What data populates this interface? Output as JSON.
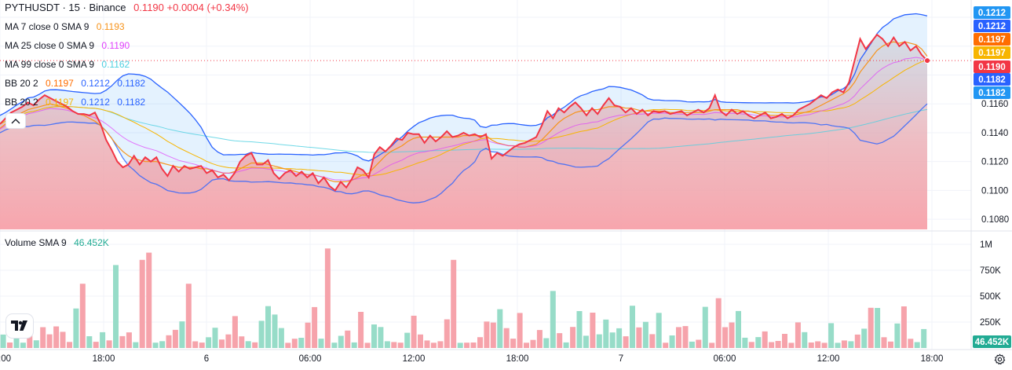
{
  "header": {
    "symbol": "PYTHUSDT",
    "interval": "15",
    "exchange": "Binance",
    "last_price": "0.1190",
    "change": "+0.0004",
    "change_pct": "(+0.34%)"
  },
  "indicators": [
    {
      "label": "MA 7 close 0 SMA 9",
      "value": "0.1193",
      "color": "#f7931a"
    },
    {
      "label": "MA 25 close 0 SMA 9",
      "value": "0.1190",
      "color": "#e040fb"
    },
    {
      "label": "MA 99 close 0 SMA 9",
      "value": "0.1162",
      "color": "#4dd0e1"
    }
  ],
  "bb_rows": [
    {
      "label": "BB 20 2",
      "values": [
        "0.1197",
        "0.1212",
        "0.1182"
      ],
      "colors": [
        "#ff6d00",
        "#2962ff",
        "#2962ff"
      ]
    },
    {
      "label": "BB 20 2",
      "values": [
        "0.1197",
        "0.1212",
        "0.1182"
      ],
      "colors": [
        "#f7b500",
        "#2962ff",
        "#2962ff"
      ]
    }
  ],
  "volume_legend": {
    "label": "Volume SMA 9",
    "value": "46.452K",
    "color": "#22ab94"
  },
  "price_axis": {
    "ticks": [
      "0.1080",
      "0.1100",
      "0.1120",
      "0.1140",
      "0.1160"
    ],
    "badges": [
      {
        "text": "0.1212",
        "color": "#2196f3"
      },
      {
        "text": "0.1212",
        "color": "#2962ff"
      },
      {
        "text": "0.1197",
        "color": "#ff6d00"
      },
      {
        "text": "0.1197",
        "color": "#f7b500"
      },
      {
        "text": "0.1190",
        "color": "#f23645"
      },
      {
        "text": "0.1182",
        "color": "#2962ff"
      },
      {
        "text": "0.1182",
        "color": "#2196f3"
      }
    ]
  },
  "volume_axis": {
    "ticks": [
      "1M",
      "750K",
      "500K",
      "250K"
    ],
    "badge": {
      "text": "46.452K",
      "color": "#22ab94"
    }
  },
  "time_axis": {
    "labels": [
      ":00",
      "18:00",
      "6",
      "06:00",
      "12:00",
      "18:00",
      "7",
      "06:00",
      "12:00",
      "18:00"
    ]
  },
  "icons": {
    "collapse": "chevron-up-icon",
    "logo": "tradingview-logo-icon",
    "settings": "gear-icon"
  },
  "colors": {
    "up": "#22ab94",
    "down": "#f23645",
    "bb_band": "#2962ff",
    "ma7": "#f7931a",
    "ma25": "#e040fb",
    "ma99": "#4dd0e1"
  },
  "chart_data": {
    "type": "line",
    "title": "PYTHUSDT · 15 · Binance",
    "price_range": [
      0.1073,
      0.1232
    ],
    "volume_range": [
      0,
      1000000
    ],
    "close": [
      0.1146,
      0.115,
      0.1154,
      0.1156,
      0.1158,
      0.1161,
      0.1159,
      0.1163,
      0.1166,
      0.1164,
      0.1162,
      0.116,
      0.1158,
      0.1155,
      0.1153,
      0.1153,
      0.1152,
      0.1154,
      0.1146,
      0.1135,
      0.1128,
      0.112,
      0.1116,
      0.1118,
      0.1124,
      0.1118,
      0.1123,
      0.112,
      0.1123,
      0.1115,
      0.111,
      0.1117,
      0.1113,
      0.1117,
      0.1115,
      0.1116,
      0.1117,
      0.1112,
      0.1114,
      0.1109,
      0.1111,
      0.1107,
      0.1112,
      0.112,
      0.1124,
      0.1126,
      0.1118,
      0.1118,
      0.1121,
      0.1112,
      0.1108,
      0.1112,
      0.1114,
      0.111,
      0.1113,
      0.1109,
      0.1112,
      0.1105,
      0.1109,
      0.1103,
      0.11,
      0.1106,
      0.1102,
      0.1108,
      0.1116,
      0.1114,
      0.1109,
      0.1125,
      0.113,
      0.1127,
      0.1131,
      0.1136,
      0.1135,
      0.114,
      0.1139,
      0.1139,
      0.1133,
      0.1138,
      0.1134,
      0.1137,
      0.1141,
      0.1137,
      0.1138,
      0.114,
      0.1138,
      0.1139,
      0.1137,
      0.1139,
      0.1122,
      0.1126,
      0.1124,
      0.1127,
      0.113,
      0.1132,
      0.1133,
      0.1135,
      0.1137,
      0.1145,
      0.1155,
      0.115,
      0.1157,
      0.1154,
      0.1158,
      0.1161,
      0.1157,
      0.1152,
      0.1157,
      0.1153,
      0.1159,
      0.1164,
      0.1159,
      0.1158,
      0.1154,
      0.1157,
      0.1153,
      0.1156,
      0.1152,
      0.1155,
      0.1154,
      0.1155,
      0.1153,
      0.1154,
      0.1155,
      0.1152,
      0.1154,
      0.1156,
      0.1154,
      0.1157,
      0.1166,
      0.1155,
      0.1152,
      0.1156,
      0.1153,
      0.1155,
      0.1152,
      0.115,
      0.1152,
      0.1154,
      0.115,
      0.1151,
      0.1153,
      0.115,
      0.1152,
      0.1156,
      0.1158,
      0.116,
      0.1163,
      0.1166,
      0.1164,
      0.1168,
      0.117,
      0.1168,
      0.1175,
      0.119,
      0.1205,
      0.1198,
      0.1203,
      0.1208,
      0.1205,
      0.12,
      0.1206,
      0.12,
      0.1203,
      0.1197,
      0.12,
      0.1194,
      0.119
    ],
    "ma7": [
      0.1143,
      0.1146,
      0.1149,
      0.1152,
      0.1154,
      0.1156,
      0.1157,
      0.1158,
      0.1159,
      0.116,
      0.1159,
      0.1158,
      0.1157,
      0.1155,
      0.1153,
      0.1152,
      0.115,
      0.1148,
      0.1145,
      0.1141,
      0.1136,
      0.1131,
      0.1127,
      0.1124,
      0.1122,
      0.1121,
      0.112,
      0.112,
      0.112,
      0.1119,
      0.1118,
      0.1117,
      0.1116,
      0.1116,
      0.1116,
      0.1116,
      0.1115,
      0.1115,
      0.1114,
      0.1113,
      0.1112,
      0.1112,
      0.1113,
      0.1115,
      0.1117,
      0.1119,
      0.1119,
      0.1119,
      0.1118,
      0.1117,
      0.1116,
      0.1115,
      0.1114,
      0.1113,
      0.1112,
      0.1111,
      0.1111,
      0.111,
      0.1109,
      0.1107,
      0.1106,
      0.1106,
      0.1106,
      0.1107,
      0.1109,
      0.1111,
      0.1112,
      0.1116,
      0.112,
      0.1124,
      0.1127,
      0.1129,
      0.1131,
      0.1134,
      0.1136,
      0.1137,
      0.1137,
      0.1137,
      0.1137,
      0.1137,
      0.1137,
      0.1137,
      0.1137,
      0.1138,
      0.1138,
      0.1138,
      0.1138,
      0.1138,
      0.1135,
      0.1133,
      0.1132,
      0.1131,
      0.1131,
      0.113,
      0.113,
      0.1131,
      0.1132,
      0.1135,
      0.1139,
      0.1143,
      0.1147,
      0.115,
      0.1152,
      0.1154,
      0.1155,
      0.1155,
      0.1156,
      0.1156,
      0.1157,
      0.1158,
      0.1158,
      0.1158,
      0.1157,
      0.1157,
      0.1156,
      0.1155,
      0.1155,
      0.1155,
      0.1155,
      0.1155,
      0.1154,
      0.1154,
      0.1154,
      0.1154,
      0.1154,
      0.1154,
      0.1154,
      0.1155,
      0.1156,
      0.1156,
      0.1156,
      0.1156,
      0.1156,
      0.1155,
      0.1155,
      0.1154,
      0.1153,
      0.1153,
      0.1152,
      0.1152,
      0.1152,
      0.1152,
      0.1152,
      0.1153,
      0.1154,
      0.1155,
      0.1157,
      0.1159,
      0.1161,
      0.1163,
      0.1165,
      0.1167,
      0.117,
      0.1175,
      0.1182,
      0.1187,
      0.1192,
      0.1197,
      0.12,
      0.1202,
      0.1203,
      0.1202,
      0.1203,
      0.1202,
      0.1201,
      0.1198,
      0.1193
    ]
  }
}
